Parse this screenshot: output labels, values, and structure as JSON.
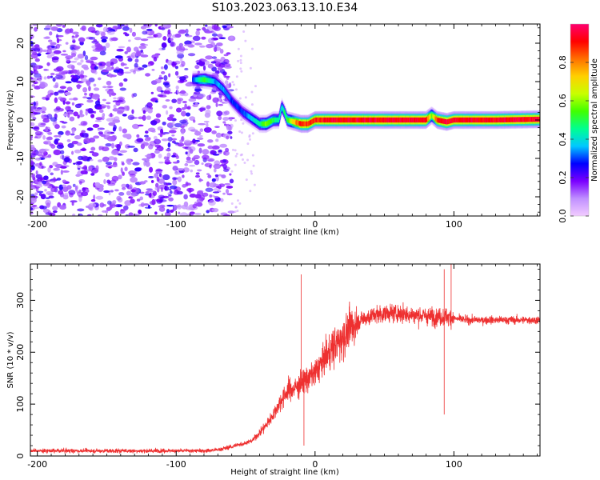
{
  "title": "S103.2023.063.13.10.E34",
  "chart_data": [
    {
      "type": "heatmap",
      "xlabel": "Height of straight line (km)",
      "ylabel": "Frequency (Hz)",
      "xlim": [
        -205,
        162
      ],
      "ylim": [
        -25,
        25
      ],
      "xticks": [
        -200,
        -100,
        0,
        100
      ],
      "yticks": [
        -20,
        -10,
        0,
        10,
        20
      ],
      "colorbar": {
        "label": "Normalized spectral amplitude",
        "range": [
          0.0,
          1.0
        ],
        "ticks": [
          0.0,
          0.2,
          0.4,
          0.6,
          0.8
        ],
        "colormap": [
          "#f2ccff",
          "#c090ff",
          "#7a00ff",
          "#0000ff",
          "#00c8ff",
          "#00ff90",
          "#40ff00",
          "#c8ff00",
          "#ffd000",
          "#ff7000",
          "#ff0000",
          "#ff0070"
        ]
      },
      "noise_region_x": [
        -205,
        -60
      ],
      "ridge": {
        "x": [
          -88,
          -80,
          -72,
          -66,
          -60,
          -52,
          -44,
          -40,
          -35,
          -30,
          -26,
          -24,
          -22,
          -20,
          -15,
          -10,
          -5,
          0,
          10,
          40,
          80,
          84,
          88,
          95,
          100,
          130,
          162
        ],
        "freq": [
          10.5,
          10.5,
          10,
          8,
          5,
          2,
          0,
          -1,
          -1,
          0,
          0,
          3.5,
          2,
          0,
          -0.5,
          -1,
          -1,
          0,
          0,
          0,
          0,
          1.2,
          0,
          -0.5,
          0,
          0,
          0.2
        ],
        "amplitude": [
          0.3,
          0.55,
          0.35,
          0.35,
          0.3,
          0.3,
          0.4,
          0.45,
          0.6,
          0.5,
          0.45,
          0.4,
          0.5,
          0.5,
          0.75,
          0.9,
          0.9,
          0.9,
          0.95,
          0.95,
          0.95,
          0.6,
          0.9,
          0.95,
          0.95,
          0.95,
          0.95
        ]
      }
    },
    {
      "type": "line",
      "xlabel": "Height of straight line (km)",
      "ylabel": "SNR (10 * v/v)",
      "xlim": [
        -205,
        162
      ],
      "ylim": [
        0,
        370
      ],
      "xticks": [
        -200,
        -100,
        0,
        100
      ],
      "yticks": [
        0,
        100,
        200,
        300
      ],
      "line_color": "#ee3030",
      "series": [
        {
          "x": [
            -205,
            -180,
            -160,
            -140,
            -120,
            -100,
            -80,
            -70,
            -60,
            -55,
            -50,
            -45,
            -40,
            -35,
            -30,
            -25,
            -20,
            -15,
            -10,
            -5,
            0,
            5,
            10,
            15,
            20,
            25,
            30,
            40,
            50,
            60,
            70,
            80,
            85,
            90,
            95,
            100,
            110,
            120,
            130,
            140,
            150,
            162
          ],
          "values": [
            10,
            10,
            10,
            10,
            10,
            10,
            10,
            12,
            18,
            22,
            25,
            30,
            45,
            60,
            80,
            105,
            125,
            130,
            140,
            150,
            160,
            180,
            200,
            215,
            230,
            245,
            258,
            270,
            275,
            275,
            272,
            270,
            268,
            268,
            268,
            265,
            262,
            262,
            262,
            262,
            262,
            262
          ]
        }
      ],
      "annotations": [
        {
          "x": -10,
          "y": 350,
          "kind": "spike"
        },
        {
          "x": -8,
          "y": 20,
          "kind": "dip"
        },
        {
          "x": 93,
          "y": 360,
          "kind": "spike"
        },
        {
          "x": 93,
          "y": 80,
          "kind": "dip"
        },
        {
          "x": 98,
          "y": 370,
          "kind": "spike"
        }
      ]
    }
  ]
}
